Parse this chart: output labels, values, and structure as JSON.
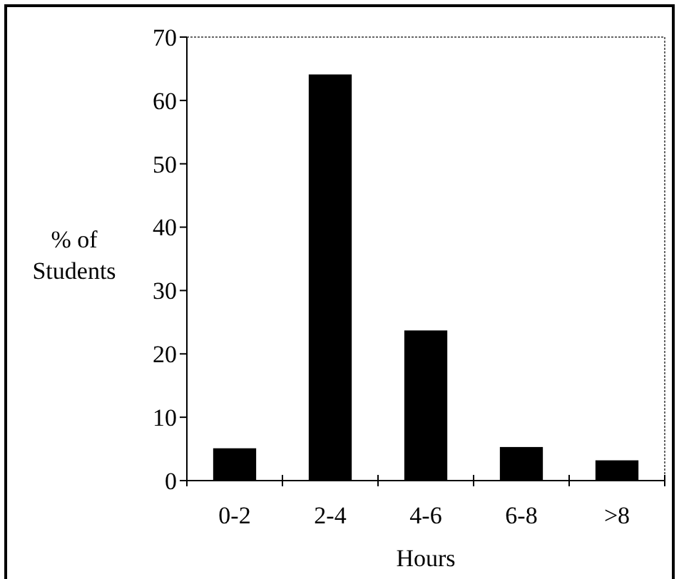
{
  "chart_data": {
    "type": "bar",
    "xlabel": "Hours",
    "ylabel": "% of Students",
    "categories": [
      "0-2",
      "2-4",
      "4-6",
      "6-8",
      ">8"
    ],
    "values": [
      5.1,
      64.1,
      23.7,
      5.3,
      3.2
    ],
    "color": "#000000",
    "ylim": [
      0,
      70
    ],
    "yticks": [
      0,
      10,
      20,
      30,
      40,
      50,
      60,
      70
    ],
    "grid": false
  }
}
